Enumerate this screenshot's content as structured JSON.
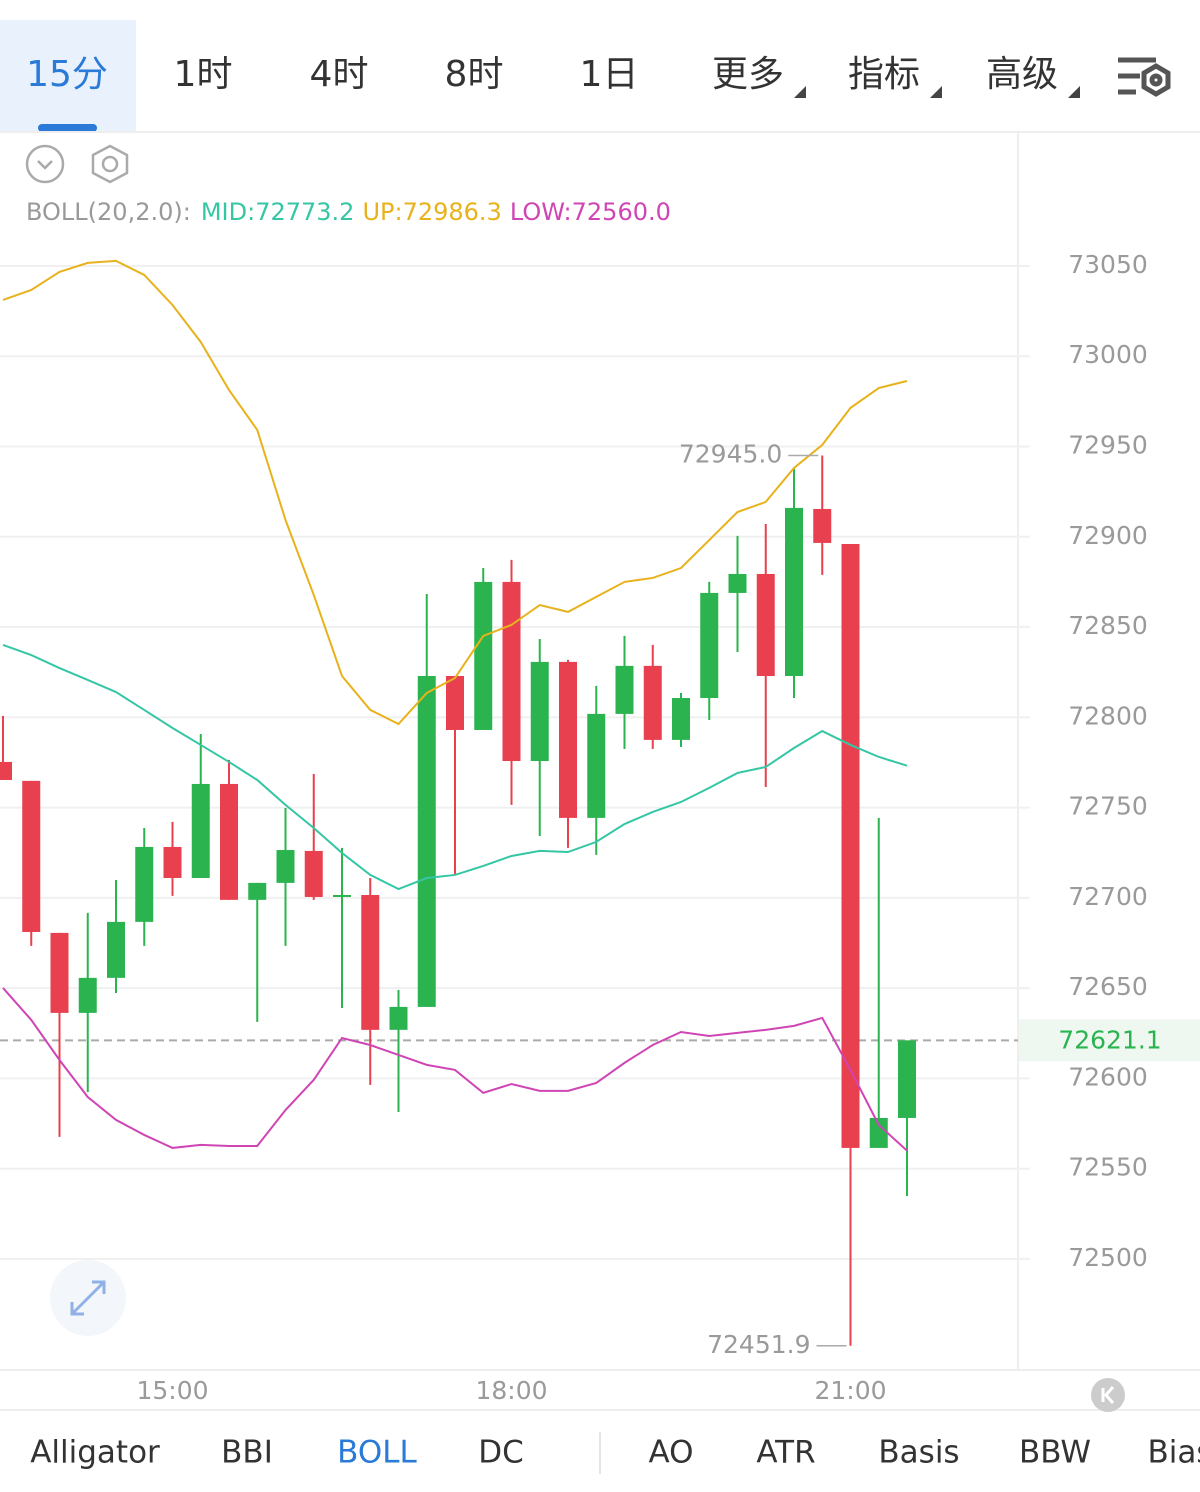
{
  "tabs": {
    "items": [
      "15分",
      "1时",
      "4时",
      "8时",
      "1日",
      "更多",
      "指标",
      "高级"
    ],
    "active": 0
  },
  "indicator_tabs": {
    "items": [
      "Alligator",
      "BBI",
      "BOLL",
      "DC",
      "AO",
      "ATR",
      "Basis",
      "BBW",
      "Bias"
    ],
    "active": 2
  },
  "chart_data": {
    "type": "candlestick",
    "indicator": "BOLL(20,2.0):",
    "categories": [
      null,
      null,
      null,
      null,
      null,
      null,
      "15:00",
      null,
      null,
      null,
      null,
      null,
      null,
      null,
      null,
      null,
      null,
      null,
      "18:00",
      null,
      null,
      null,
      null,
      null,
      null,
      null,
      null,
      null,
      null,
      null,
      "21:00",
      null,
      null
    ],
    "open": [
      72775.3,
      72764.8,
      72680.6,
      72636.3,
      72655.7,
      72686.7,
      72728.2,
      72711.0,
      72763.1,
      72698.9,
      72708.3,
      72726.0,
      72701.6,
      72701.6,
      72626.9,
      72639.6,
      72822.9,
      72793.0,
      72875.0,
      72775.8,
      72830.7,
      72744.3,
      72801.9,
      72828.5,
      72787.5,
      72810.7,
      72868.9,
      72879.4,
      72822.9,
      72915.4,
      72896.0,
      72561.5,
      72578.1
    ],
    "high": [
      72800.8,
      72764.8,
      72680.6,
      72691.7,
      72709.9,
      72738.7,
      72742.1,
      72790.8,
      72776.4,
      72708.3,
      72749.8,
      72768.6,
      72727.7,
      72711.0,
      72649.0,
      72868.3,
      72822.9,
      72882.7,
      72887.2,
      72843.4,
      72831.8,
      72817.4,
      72845.1,
      72840.1,
      72813.5,
      72875.0,
      72900.5,
      72907.1,
      72937.6,
      72945.0,
      72896.0,
      72744.3,
      72621.1
    ],
    "low": [
      72765.3,
      72673.4,
      72567.6,
      72592.5,
      72647.3,
      72673.4,
      72701.1,
      72711.0,
      72698.9,
      72631.3,
      72673.4,
      72698.9,
      72639.0,
      72596.4,
      72581.4,
      72639.6,
      72712.7,
      72793.0,
      72751.5,
      72734.3,
      72727.7,
      72723.8,
      72782.5,
      72782.5,
      72783.6,
      72798.5,
      72836.2,
      72761.4,
      72810.7,
      72878.9,
      72451.9,
      72561.5,
      72534.9
    ],
    "close": [
      72765.3,
      72681.1,
      72636.3,
      72655.7,
      72686.7,
      72728.2,
      72711.0,
      72763.1,
      72698.9,
      72708.3,
      72726.5,
      72700.5,
      72701.6,
      72626.9,
      72639.6,
      72822.9,
      72793.0,
      72875.0,
      72775.8,
      72830.7,
      72744.3,
      72801.9,
      72828.5,
      72787.5,
      72810.7,
      72868.9,
      72879.4,
      72822.9,
      72916.0,
      72896.6,
      72561.5,
      72578.1,
      72621.1
    ],
    "up_color": "#2bb34f",
    "down_color": "#e8404f",
    "series": [
      {
        "name": "MID:",
        "color": "#35c6a4",
        "legend_value": 72773.2,
        "values": [
          72840.1,
          72834.5,
          72827.3,
          72820.7,
          72814.0,
          72804.1,
          72794.1,
          72784.7,
          72775.3,
          72765.3,
          72751.5,
          72738.7,
          72724.9,
          72712.7,
          72704.9,
          72711.0,
          72712.7,
          72717.7,
          72723.2,
          72726.0,
          72725.4,
          72731.0,
          72740.9,
          72747.6,
          72753.1,
          72760.9,
          72769.2,
          72772.5,
          72783.0,
          72792.4,
          72784.7,
          72778.1,
          72773.2
        ]
      },
      {
        "name": "UP:",
        "color": "#e8b21c",
        "legend_value": 72986.3,
        "values": [
          73031.2,
          73036.7,
          73046.7,
          73051.7,
          73052.8,
          73045.0,
          73028.4,
          73007.9,
          72981.3,
          72959.2,
          72909.3,
          72867.8,
          72822.9,
          72804.1,
          72796.3,
          72813.5,
          72821.8,
          72845.1,
          72851.2,
          72862.2,
          72858.4,
          72866.7,
          72875.0,
          72877.2,
          72882.7,
          72898.2,
          72913.7,
          72919.3,
          72938.1,
          72950.9,
          72971.4,
          72982.4,
          72986.3
        ]
      },
      {
        "name": "LOW:",
        "color": "#d045b5",
        "legend_value": {
          "value": 72560,
          "label": "72560.0"
        },
        "values": [
          72650.1,
          72632.4,
          72610.2,
          72589.7,
          72577.0,
          72568.7,
          72561.5,
          72563.2,
          72562.6,
          72562.6,
          72582.5,
          72599.2,
          72622.4,
          72618.5,
          72613.0,
          72607.5,
          72604.7,
          72592.0,
          72596.9,
          72593.1,
          72593.1,
          72597.5,
          72608.6,
          72618.5,
          72625.7,
          72623.5,
          72625.2,
          72626.9,
          72629.1,
          72633.5,
          72604.7,
          72574.2,
          72560.0
        ]
      }
    ],
    "max_label": {
      "value": 72945,
      "label": "72945.0"
    },
    "min_label": {
      "value": 72451.9,
      "label": "72451.9"
    },
    "last_price": 72621.1,
    "ylim": [
      72438.5,
      73124.2
    ],
    "yticks": [
      72500,
      72550,
      72600,
      72650,
      72700,
      72750,
      72800,
      72850,
      72900,
      72950,
      73000,
      73050
    ],
    "grid": true
  }
}
